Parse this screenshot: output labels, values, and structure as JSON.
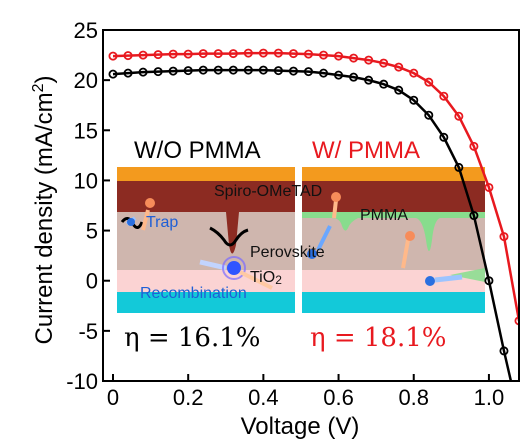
{
  "chart_data": {
    "type": "line",
    "xlabel": "Voltage (V)",
    "ylabel_main": "Current density (mA/cm",
    "ylabel_sup": "2",
    "ylabel_close": ")",
    "xlim": [
      0,
      1.08
    ],
    "ylim": [
      -10,
      25
    ],
    "xticks": [
      "0",
      "0.2",
      "0.4",
      "0.6",
      "0.8",
      "1.0"
    ],
    "xtick_values": [
      0,
      0.2,
      0.4,
      0.6,
      0.8,
      1.0
    ],
    "yticks": [
      "-10",
      "-5",
      "0",
      "5",
      "10",
      "15",
      "20",
      "25"
    ],
    "ytick_values": [
      -10,
      -5,
      0,
      5,
      10,
      15,
      20,
      25
    ],
    "series": [
      {
        "color": "#000000",
        "x": [
          0,
          0.04,
          0.08,
          0.12,
          0.16,
          0.2,
          0.24,
          0.28,
          0.32,
          0.36,
          0.4,
          0.44,
          0.48,
          0.52,
          0.56,
          0.6,
          0.64,
          0.68,
          0.72,
          0.76,
          0.8,
          0.84,
          0.88,
          0.92,
          0.96,
          1.0,
          1.04,
          1.08
        ],
        "y": [
          20.6,
          20.7,
          20.8,
          20.85,
          20.9,
          20.95,
          21.0,
          21.0,
          21.0,
          21.0,
          21.0,
          20.95,
          20.9,
          20.85,
          20.7,
          20.5,
          20.3,
          20.0,
          19.6,
          19.0,
          18.0,
          16.5,
          14.3,
          11.3,
          6.5,
          0,
          -7.0,
          -13.5
        ]
      },
      {
        "color": "#e8191f",
        "x": [
          0,
          0.04,
          0.08,
          0.12,
          0.16,
          0.2,
          0.24,
          0.28,
          0.32,
          0.36,
          0.4,
          0.44,
          0.48,
          0.52,
          0.56,
          0.6,
          0.64,
          0.68,
          0.72,
          0.76,
          0.8,
          0.84,
          0.88,
          0.92,
          0.96,
          1.0,
          1.04,
          1.08
        ],
        "y": [
          22.4,
          22.45,
          22.5,
          22.55,
          22.6,
          22.6,
          22.65,
          22.65,
          22.65,
          22.7,
          22.7,
          22.7,
          22.65,
          22.6,
          22.5,
          22.4,
          22.2,
          22.0,
          21.7,
          21.3,
          20.7,
          19.8,
          18.4,
          16.4,
          13.4,
          9.3,
          4.4,
          -4.0
        ]
      }
    ]
  },
  "inset": {
    "left_title": "W/O PMMA",
    "right_title": "W/ PMMA",
    "spiro_label": "Spiro-OMeTAD",
    "pmma_label": "PMMA",
    "trap_label": "Trap",
    "perovskite_label": "Perovskite",
    "tio2_label": "TiO",
    "tio2_sub": "2",
    "recombination_label": "Recombination",
    "eta_left": "η = 16.1%",
    "eta_right": "η = 18.1%"
  },
  "colors": {
    "red_text": "#e8191f",
    "blue_text": "#1f5fd6",
    "orange_layer": "#f39a1e",
    "spiro_layer": "#8c2b22",
    "perovskite_layer": "#cfb6ae",
    "tio2_layer": "#fbd3d3",
    "cyan_layer": "#13c9d9",
    "pmma_green": "#7fe08a"
  }
}
